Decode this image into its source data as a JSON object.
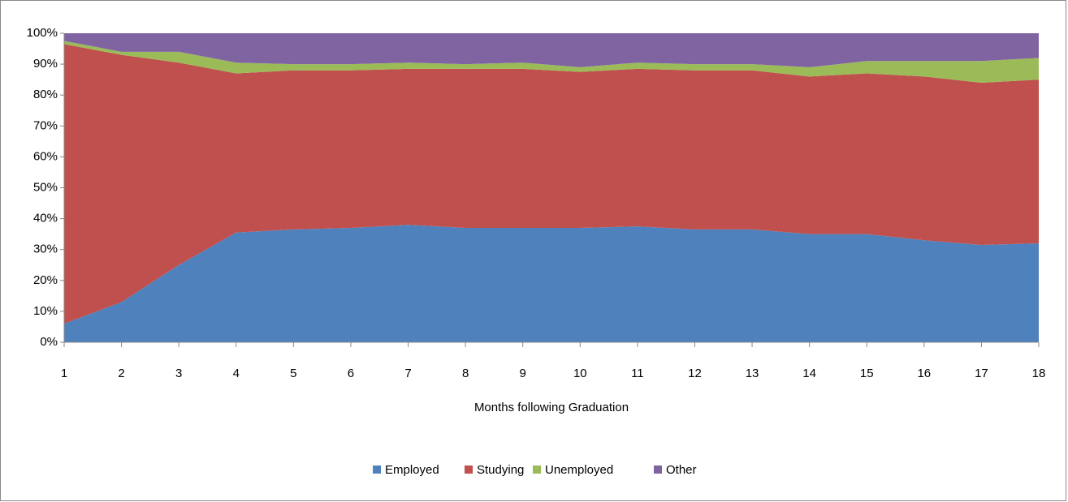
{
  "chart_data": {
    "type": "area",
    "stacked": true,
    "x_label": "Months following Graduation",
    "x": [
      1,
      2,
      3,
      4,
      5,
      6,
      7,
      8,
      9,
      10,
      11,
      12,
      13,
      14,
      15,
      16,
      17,
      18
    ],
    "xlim": [
      1,
      18
    ],
    "ylim": [
      0,
      100
    ],
    "yticks": [
      {
        "value": 0,
        "label": "0%"
      },
      {
        "value": 10,
        "label": "10%"
      },
      {
        "value": 20,
        "label": "20%"
      },
      {
        "value": 30,
        "label": "30%"
      },
      {
        "value": 40,
        "label": "40%"
      },
      {
        "value": 50,
        "label": "50%"
      },
      {
        "value": 60,
        "label": "60%"
      },
      {
        "value": 70,
        "label": "70%"
      },
      {
        "value": 80,
        "label": "80%"
      },
      {
        "value": 90,
        "label": "90%"
      },
      {
        "value": 100,
        "label": "100%"
      }
    ],
    "legend": "bottom",
    "series": [
      {
        "name": "Employed",
        "color": "#4f81bd",
        "values": [
          6,
          13,
          25,
          35.5,
          36.5,
          37,
          38,
          37,
          37,
          37,
          37.5,
          36.5,
          36.5,
          35,
          35,
          33,
          31.5,
          32
        ]
      },
      {
        "name": "Studying",
        "color": "#c0504d",
        "values": [
          90.5,
          80,
          65.5,
          51.5,
          51.5,
          51,
          50.5,
          51.5,
          51.5,
          50.5,
          51,
          51.5,
          51.5,
          51,
          52,
          53,
          52.5,
          53
        ]
      },
      {
        "name": "Unemployed",
        "color": "#9bbb59",
        "values": [
          1,
          1,
          3.5,
          3.5,
          2,
          2,
          2,
          1.5,
          2,
          1.5,
          2,
          2,
          2,
          3,
          4,
          5,
          7,
          7
        ]
      },
      {
        "name": "Other",
        "color": "#8064a2",
        "values": [
          2.5,
          6,
          6,
          9.5,
          10,
          10,
          9.5,
          10,
          9.5,
          11,
          9.5,
          10,
          10,
          11,
          9,
          9,
          9,
          8
        ]
      }
    ]
  }
}
